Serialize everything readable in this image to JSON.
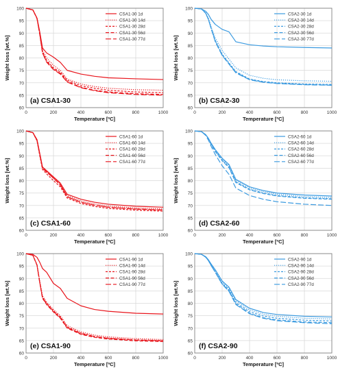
{
  "figure": {
    "colors": {
      "red": "#e8141b",
      "blue": "#3a9ae0",
      "grid": "#d9d9d9",
      "axis": "#808080"
    },
    "line_styles": {
      "1d": "solid",
      "14d": "dotted",
      "28d": "short-dash",
      "56d": "dash",
      "77d": "long-dash"
    }
  },
  "chart_data": [
    {
      "type": "line",
      "panel_label": "(a) CSA1-30",
      "color": "red",
      "xlabel": "Temperature [ºC]",
      "ylabel": "Weight loss [wt.%]",
      "xlim": [
        0,
        1000
      ],
      "ylim": [
        60,
        100
      ],
      "xticks": [
        "0",
        "200",
        "400",
        "600",
        "800",
        "1000"
      ],
      "yticks": [
        "60",
        "65",
        "70",
        "75",
        "80",
        "85",
        "90",
        "95",
        "100"
      ],
      "grid": true,
      "legend": "top-right",
      "x": [
        0,
        50,
        80,
        100,
        120,
        150,
        200,
        250,
        300,
        400,
        500,
        600,
        800,
        1000
      ],
      "series": [
        {
          "name": "CSA1-30 1d",
          "style": "1d",
          "values": [
            100,
            99.3,
            96,
            90.5,
            84,
            82,
            80.3,
            78.2,
            75,
            73.5,
            72.6,
            72,
            71.6,
            71.3
          ]
        },
        {
          "name": "CSA1-30 14d",
          "style": "14d",
          "values": [
            100,
            99.3,
            96,
            90,
            83,
            80,
            77,
            75,
            71.5,
            69.5,
            68.5,
            67.8,
            67.2,
            67
          ]
        },
        {
          "name": "CSA1-30 28d",
          "style": "28d",
          "values": [
            100,
            99.3,
            96,
            90,
            82.5,
            79,
            76,
            74.3,
            71,
            68.8,
            67.8,
            67,
            66.3,
            66
          ]
        },
        {
          "name": "CSA1-30 56d",
          "style": "56d",
          "values": [
            100,
            99.3,
            95.8,
            89.5,
            82,
            78.5,
            75.5,
            73.8,
            70.5,
            68.2,
            67,
            66.3,
            65.6,
            65.3
          ]
        },
        {
          "name": "CSA1-30 77d",
          "style": "77d",
          "values": [
            100,
            99.3,
            95.8,
            89.5,
            82,
            78.3,
            75.3,
            73.5,
            70.3,
            68,
            66.8,
            66,
            65.3,
            65
          ]
        }
      ]
    },
    {
      "type": "line",
      "panel_label": "(b) CSA2-30",
      "color": "blue",
      "xlabel": "Temperature [ºC]",
      "ylabel": "Weight loss [wt.%]",
      "xlim": [
        0,
        1000
      ],
      "ylim": [
        60,
        100
      ],
      "xticks": [
        "0",
        "200",
        "400",
        "600",
        "800",
        "1000"
      ],
      "yticks": [
        "60",
        "65",
        "70",
        "75",
        "80",
        "85",
        "90",
        "95",
        "100"
      ],
      "grid": true,
      "legend": "top-right",
      "x": [
        0,
        50,
        80,
        100,
        120,
        150,
        200,
        250,
        300,
        400,
        500,
        600,
        800,
        1000
      ],
      "series": [
        {
          "name": "CSA2-30 1d",
          "style": "1d",
          "values": [
            100,
            99.7,
            98.8,
            97.5,
            95.5,
            93.5,
            91.5,
            90.5,
            86.5,
            85.3,
            84.8,
            84.5,
            84.2,
            84
          ]
        },
        {
          "name": "CSA2-30 14d",
          "style": "14d",
          "values": [
            100,
            99.7,
            98.2,
            96,
            92.5,
            88,
            83,
            79.5,
            76,
            73,
            71.8,
            71.2,
            70.8,
            70.6
          ]
        },
        {
          "name": "CSA2-30 28d",
          "style": "28d",
          "values": [
            100,
            99.7,
            98,
            95.5,
            92,
            87,
            81.5,
            78,
            74.5,
            71.5,
            70.5,
            70,
            69.5,
            69.3
          ]
        },
        {
          "name": "CSA2-30 56d",
          "style": "56d",
          "values": [
            100,
            99.7,
            98,
            95.5,
            91.8,
            86.8,
            81.2,
            77.7,
            74.2,
            71.3,
            70.3,
            69.8,
            69.3,
            69.1
          ]
        },
        {
          "name": "CSA2-30 77d",
          "style": "77d",
          "values": [
            100,
            99.7,
            98,
            95.5,
            91.8,
            86.5,
            81,
            77.5,
            74,
            71.2,
            70.2,
            69.7,
            69.2,
            69
          ]
        }
      ]
    },
    {
      "type": "line",
      "panel_label": "(c) CSA1-60",
      "color": "red",
      "xlabel": "Temperature [ºC]",
      "ylabel": "Weight loss [wt.%]",
      "xlim": [
        0,
        1000
      ],
      "ylim": [
        60,
        100
      ],
      "xticks": [
        "0",
        "200",
        "400",
        "600",
        "800",
        "1000"
      ],
      "yticks": [
        "60",
        "65",
        "70",
        "75",
        "80",
        "85",
        "90",
        "95",
        "100"
      ],
      "grid": true,
      "legend": "top-right",
      "x": [
        0,
        50,
        80,
        100,
        120,
        150,
        200,
        250,
        300,
        400,
        500,
        600,
        800,
        1000
      ],
      "series": [
        {
          "name": "CSA1-60 1d",
          "style": "1d",
          "values": [
            100,
            99.3,
            96.5,
            91,
            85.5,
            84,
            81.5,
            79,
            74.5,
            72.5,
            71.3,
            70.5,
            69.7,
            69.3
          ]
        },
        {
          "name": "CSA1-60 14d",
          "style": "14d",
          "values": [
            100,
            99.3,
            96.3,
            90.7,
            85.2,
            83.7,
            81.2,
            78.7,
            74,
            71.8,
            70.6,
            69.8,
            69,
            68.6
          ]
        },
        {
          "name": "CSA1-60 28d",
          "style": "28d",
          "values": [
            100,
            99.3,
            96,
            90,
            84.5,
            82.7,
            80,
            77.5,
            73,
            70.8,
            69.6,
            68.8,
            68.1,
            67.7
          ]
        },
        {
          "name": "CSA1-60 56d",
          "style": "56d",
          "values": [
            100,
            99.3,
            96.2,
            90.5,
            85,
            83.5,
            81,
            78.3,
            73.5,
            71.3,
            70.1,
            69.3,
            68.5,
            68.1
          ]
        },
        {
          "name": "CSA1-60 77d",
          "style": "77d",
          "values": [
            100,
            99.3,
            96.2,
            90.5,
            85,
            83.4,
            81,
            78.2,
            73.5,
            71.3,
            70.1,
            69.3,
            68.6,
            68.2
          ]
        }
      ]
    },
    {
      "type": "line",
      "panel_label": "(d) CSA2-60",
      "color": "blue",
      "xlabel": "Temperature [ºC]",
      "ylabel": "Weight loss [wt.%]",
      "xlim": [
        0,
        1000
      ],
      "ylim": [
        60,
        100
      ],
      "xticks": [
        "0",
        "200",
        "400",
        "600",
        "800",
        "1000"
      ],
      "yticks": [
        "60",
        "65",
        "70",
        "75",
        "80",
        "85",
        "90",
        "95",
        "100"
      ],
      "grid": true,
      "legend": "top-right",
      "x": [
        0,
        50,
        80,
        100,
        120,
        150,
        200,
        250,
        300,
        400,
        500,
        600,
        800,
        1000
      ],
      "series": [
        {
          "name": "CSA2-60 1d",
          "style": "1d",
          "values": [
            100,
            99.7,
            98.5,
            97,
            95,
            92.5,
            89,
            86.5,
            80.5,
            77.5,
            76,
            75,
            74.2,
            73.8
          ]
        },
        {
          "name": "CSA2-60 14d",
          "style": "14d",
          "values": [
            100,
            99.7,
            98.5,
            97,
            95,
            92.3,
            88.7,
            86,
            80,
            77,
            75.5,
            74.5,
            73.6,
            73.2
          ]
        },
        {
          "name": "CSA2-60 28d",
          "style": "28d",
          "values": [
            100,
            99.7,
            98.5,
            97,
            94.8,
            92,
            88.3,
            85.5,
            79.5,
            76.5,
            75,
            74,
            73.1,
            72.7
          ]
        },
        {
          "name": "CSA2-60 56d",
          "style": "56d",
          "values": [
            100,
            99.7,
            98.5,
            96.8,
            94.5,
            91.7,
            88,
            85.2,
            79.2,
            76.3,
            74.8,
            73.8,
            72.9,
            72.5
          ]
        },
        {
          "name": "CSA2-60 77d",
          "style": "77d",
          "values": [
            100,
            99.7,
            98.2,
            96.3,
            93.8,
            90.5,
            86,
            82.5,
            77,
            74,
            72.5,
            71.5,
            70.5,
            70
          ]
        }
      ]
    },
    {
      "type": "line",
      "panel_label": "(e) CSA1-90",
      "color": "red",
      "xlabel": "Temperature [ºC]",
      "ylabel": "Weight loss [wt.%]",
      "xlim": [
        0,
        1000
      ],
      "ylim": [
        60,
        100
      ],
      "xticks": [
        "0",
        "200",
        "400",
        "600",
        "800",
        "1000"
      ],
      "yticks": [
        "60",
        "65",
        "70",
        "75",
        "80",
        "85",
        "90",
        "95",
        "100"
      ],
      "grid": true,
      "legend": "top-right",
      "x": [
        0,
        50,
        80,
        100,
        120,
        150,
        200,
        250,
        300,
        400,
        500,
        600,
        800,
        1000
      ],
      "series": [
        {
          "name": "CSA1-90 1d",
          "style": "1d",
          "values": [
            100,
            99.7,
            98.5,
            96.5,
            94,
            92.5,
            88,
            86,
            82,
            79,
            77.5,
            76.8,
            76,
            75.7
          ]
        },
        {
          "name": "CSA1-90 14d",
          "style": "14d",
          "values": [
            100,
            99.3,
            95.5,
            89,
            83,
            80.5,
            77.5,
            75,
            71,
            68.5,
            67.2,
            66.5,
            65.8,
            65.4
          ]
        },
        {
          "name": "CSA1-90 28d",
          "style": "28d",
          "values": [
            100,
            99.3,
            95.5,
            88.5,
            82.5,
            80,
            77,
            74.5,
            70.5,
            68,
            66.7,
            66,
            65.3,
            65
          ]
        },
        {
          "name": "CSA1-90 56d",
          "style": "56d",
          "values": [
            100,
            99.3,
            95.3,
            88.3,
            82,
            79.5,
            76.5,
            74,
            70,
            67.5,
            66.3,
            65.6,
            64.9,
            64.6
          ]
        },
        {
          "name": "CSA1-90 77d",
          "style": "77d",
          "values": [
            100,
            99.3,
            95.3,
            88.3,
            82.2,
            79.7,
            76.7,
            74.2,
            70.2,
            67.8,
            66.6,
            65.9,
            65.2,
            64.9
          ]
        }
      ]
    },
    {
      "type": "line",
      "panel_label": "(f) CSA2-90",
      "color": "blue",
      "xlabel": "Temperature [ºC]",
      "ylabel": "Weight loss [wt.%]",
      "xlim": [
        0,
        1000
      ],
      "ylim": [
        60,
        100
      ],
      "xticks": [
        "0",
        "200",
        "400",
        "600",
        "800",
        "1000"
      ],
      "yticks": [
        "60",
        "65",
        "70",
        "75",
        "80",
        "85",
        "90",
        "95",
        "100"
      ],
      "grid": true,
      "legend": "top-right",
      "x": [
        0,
        50,
        80,
        100,
        120,
        150,
        200,
        250,
        300,
        400,
        500,
        600,
        800,
        1000
      ],
      "series": [
        {
          "name": "CSA2-90 1d",
          "style": "1d",
          "values": [
            100,
            99.7,
            98.8,
            97.5,
            95.8,
            93.5,
            89,
            86.5,
            81.5,
            78,
            76.3,
            75.5,
            74.8,
            74.5
          ]
        },
        {
          "name": "CSA2-90 14d",
          "style": "14d",
          "values": [
            100,
            99.7,
            98.7,
            97.3,
            95.5,
            93,
            88.5,
            86,
            81,
            77.3,
            75.6,
            74.8,
            74,
            73.7
          ]
        },
        {
          "name": "CSA2-90 28d",
          "style": "28d",
          "values": [
            100,
            99.7,
            98.6,
            97.2,
            95.3,
            92.7,
            88,
            85.5,
            80.3,
            76.6,
            74.9,
            74,
            73.2,
            72.9
          ]
        },
        {
          "name": "CSA2-90 56d",
          "style": "56d",
          "values": [
            100,
            99.7,
            98.6,
            97.2,
            95.2,
            92.5,
            87.8,
            85,
            79.8,
            76,
            74.2,
            73.3,
            72.5,
            72.2
          ]
        },
        {
          "name": "CSA2-90 77d",
          "style": "77d",
          "values": [
            100,
            99.7,
            98.6,
            97.2,
            95.2,
            92.5,
            87.7,
            84.8,
            79.5,
            75.8,
            74,
            73,
            72.2,
            71.8
          ]
        }
      ]
    }
  ]
}
